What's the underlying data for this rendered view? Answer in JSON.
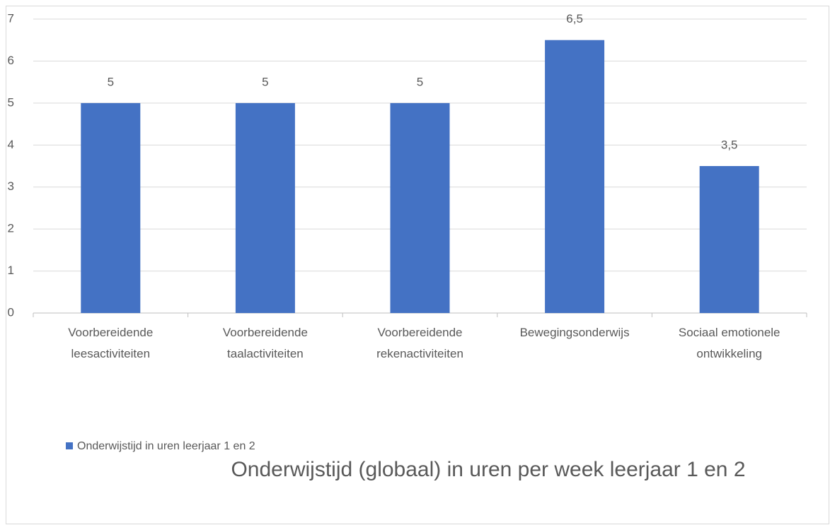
{
  "chart_data": {
    "type": "bar",
    "title": "Onderwijstijd (globaal) in uren per week leerjaar 1 en 2",
    "categories": [
      "Voorbereidende\nleesactiviteiten",
      "Voorbereidende\ntaalactiviteiten",
      "Voorbereidende\nrekenactiviteiten",
      "Bewegingsonderwijs",
      "Sociaal emotionele\nontwikkeling"
    ],
    "series": [
      {
        "name": "Onderwijstijd in uren leerjaar 1 en 2",
        "color": "#4472c4",
        "values": [
          5,
          5,
          5,
          6.5,
          3.5
        ],
        "value_labels": [
          "5",
          "5",
          "5",
          "6,5",
          "3,5"
        ]
      }
    ],
    "ylim": [
      0,
      7
    ],
    "yticks": [
      0,
      1,
      2,
      3,
      4,
      5,
      6,
      7
    ],
    "grid": true,
    "legend": "bottom-left"
  }
}
